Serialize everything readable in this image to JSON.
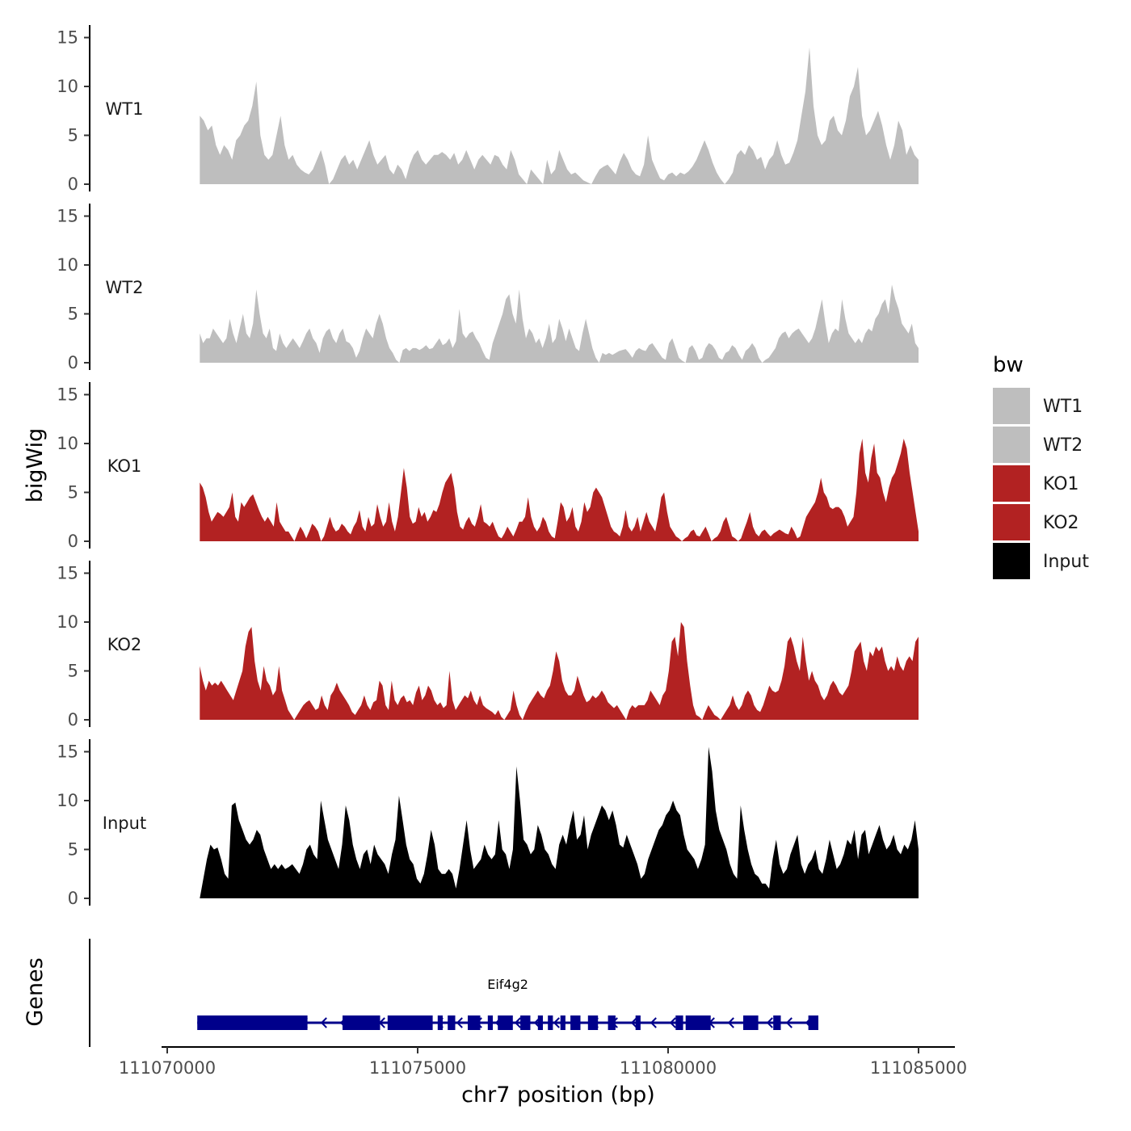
{
  "chart_data": {
    "type": "area",
    "title": "",
    "ylabel": "bigWig",
    "genes_label": "Genes",
    "xlabel": "chr7 position (bp)",
    "xlim": [
      111069800,
      111085300
    ],
    "x_ticks": [
      111070000,
      111075000,
      111080000,
      111085000
    ],
    "x_tick_labels": [
      "111070000",
      "111075000",
      "111080000",
      "111085000"
    ],
    "ylim": [
      0,
      15.5
    ],
    "y_ticks": [
      0,
      5,
      10,
      15
    ],
    "y_tick_labels": [
      "0",
      "5",
      "10",
      "15"
    ],
    "signal_x_range": [
      111070650,
      111085000
    ],
    "legend": {
      "title": "bw",
      "entries": [
        {
          "label": "WT1",
          "color": "#BEBEBE"
        },
        {
          "label": "WT2",
          "color": "#BEBEBE"
        },
        {
          "label": "KO1",
          "color": "#B22222"
        },
        {
          "label": "KO2",
          "color": "#B22222"
        },
        {
          "label": "Input",
          "color": "#000000"
        }
      ]
    },
    "series": [
      {
        "name": "WT1",
        "color": "#BEBEBE",
        "values": [
          7,
          6.5,
          5.5,
          6,
          4,
          3,
          4,
          3.5,
          2.5,
          4.5,
          5,
          6,
          6.5,
          8,
          10.5,
          5,
          3,
          2.5,
          3,
          5,
          7,
          4,
          2.5,
          3,
          2,
          1.5,
          1.2,
          1,
          1.5,
          2.5,
          3.5,
          2,
          0,
          0.5,
          1.5,
          2.5,
          3,
          2,
          2.5,
          1.5,
          2.5,
          3.5,
          4.5,
          3,
          2,
          2.5,
          3,
          1.5,
          1,
          2,
          1.5,
          0.5,
          2,
          3,
          3.5,
          2.5,
          2,
          2.5,
          3,
          3,
          3.3,
          3,
          2.5,
          3.2,
          2,
          2.5,
          3.5,
          2.5,
          1.5,
          2.5,
          3,
          2.5,
          2,
          3,
          2.8,
          2,
          1.5,
          3.5,
          2.5,
          1,
          0.5,
          0,
          1.5,
          1,
          0.5,
          0,
          2.5,
          1,
          1.5,
          3.5,
          2.5,
          1.5,
          1,
          1.2,
          0.8,
          0.4,
          0.2,
          0,
          0.8,
          1.5,
          1.8,
          2,
          1.5,
          1,
          2.3,
          3.2,
          2.5,
          1.5,
          1,
          0.8,
          2,
          5,
          2.5,
          1.5,
          0.6,
          0.4,
          1,
          1.2,
          0.8,
          1.2,
          1,
          1.3,
          1.8,
          2.5,
          3.5,
          4.5,
          3.5,
          2.2,
          1.2,
          0.5,
          0,
          0.5,
          1.2,
          3,
          3.5,
          3,
          4,
          3.5,
          2.5,
          2.8,
          1.5,
          2.5,
          3,
          4.5,
          3,
          2,
          2.2,
          3.2,
          4.5,
          7,
          9.5,
          14,
          8,
          5,
          4,
          4.5,
          6.5,
          7,
          5.5,
          5,
          6.5,
          9,
          10,
          12,
          7,
          5,
          5.5,
          6.5,
          7.5,
          6,
          4,
          2.5,
          4,
          6.5,
          5.5,
          3,
          4,
          3,
          2.5
        ]
      },
      {
        "name": "WT2",
        "color": "#BEBEBE",
        "values": [
          3,
          2,
          2.5,
          2.5,
          3.5,
          3,
          2.5,
          2,
          2.5,
          4.5,
          3,
          2,
          3.5,
          5,
          3,
          2.5,
          4,
          7.5,
          5,
          3,
          2.5,
          3.5,
          1.5,
          1.2,
          3,
          2,
          1.5,
          2,
          2.5,
          2,
          1.5,
          2.2,
          3,
          3.5,
          2.5,
          2,
          1,
          2.5,
          3.2,
          3.5,
          2.5,
          2,
          3,
          3.5,
          2.2,
          2,
          1.5,
          0.5,
          1.2,
          2.5,
          3.5,
          3,
          2.5,
          4,
          5,
          4,
          2.5,
          1.5,
          1,
          0.3,
          0,
          1.3,
          1.5,
          1.2,
          1.5,
          1.5,
          1.3,
          1.5,
          1.8,
          1.4,
          1.5,
          2,
          2.5,
          1.8,
          2,
          2.5,
          1.5,
          2.2,
          5.5,
          3,
          2.5,
          3,
          3.2,
          2.5,
          2,
          1.2,
          0.5,
          0.3,
          2,
          3,
          4,
          5,
          6.5,
          7,
          5,
          4,
          7.5,
          4.5,
          2.5,
          3.5,
          3,
          2,
          2.5,
          1.5,
          2.5,
          4,
          2,
          2.5,
          4.5,
          3.5,
          2.2,
          3.5,
          2.5,
          1.5,
          1.2,
          3,
          4.5,
          3,
          1.5,
          0.5,
          0,
          1,
          0.8,
          1,
          0.8,
          1,
          1.2,
          1.3,
          1.4,
          1,
          0.5,
          1.2,
          1.5,
          1.3,
          1.2,
          1.8,
          2,
          1.5,
          1,
          0.5,
          0.3,
          2,
          2.5,
          1.5,
          0.5,
          0.2,
          0,
          1.5,
          1.8,
          1.2,
          0.3,
          0.5,
          1.5,
          2,
          1.8,
          1.3,
          0.5,
          0.3,
          1,
          1.2,
          1.8,
          1.5,
          0.8,
          0.3,
          1.2,
          1.5,
          2,
          1.5,
          0.5,
          0,
          0.3,
          0.5,
          1,
          1.5,
          2.5,
          3,
          3.2,
          2.5,
          3,
          3.3,
          3.5,
          3,
          2.5,
          2,
          2.5,
          3.5,
          5,
          6.5,
          4,
          2,
          3,
          3.5,
          3.2,
          6.5,
          4.5,
          3,
          2.5,
          2,
          2.5,
          2,
          3,
          3.5,
          3.2,
          4.5,
          5,
          6,
          6.5,
          5,
          8,
          6.5,
          5.5,
          4,
          3.5,
          3,
          4,
          2,
          1.5
        ]
      },
      {
        "name": "KO1",
        "color": "#B22222",
        "values": [
          6,
          5.5,
          4.5,
          3,
          2,
          2.5,
          3,
          2.8,
          2.5,
          3,
          3.5,
          5,
          2.5,
          2,
          4,
          3.5,
          4,
          4.5,
          4.8,
          4,
          3.2,
          2.5,
          2,
          2.5,
          2,
          1.5,
          4,
          2,
          1.5,
          1,
          1,
          0.5,
          0,
          0.8,
          1.5,
          1,
          0.3,
          1,
          1.8,
          1.5,
          1,
          0,
          0.5,
          1.5,
          2.5,
          1.5,
          1,
          1.2,
          1.8,
          1.5,
          1,
          0.7,
          1.5,
          2,
          3.2,
          1.5,
          1,
          2.5,
          1.5,
          1.8,
          3.8,
          2.5,
          1.5,
          2,
          4,
          2,
          1,
          2.5,
          5,
          7.5,
          5.5,
          2.5,
          1.8,
          2,
          3.5,
          2.5,
          3,
          2,
          2.5,
          3.2,
          3,
          3.8,
          5,
          6,
          6.5,
          7,
          5.5,
          3,
          1.5,
          1.2,
          2,
          2.5,
          1.8,
          1.5,
          2.5,
          3.8,
          2,
          1.8,
          1.5,
          2,
          1.2,
          0.5,
          0.3,
          0.8,
          1.5,
          1,
          0.5,
          1.2,
          2,
          2,
          2.5,
          4.5,
          2.5,
          1.5,
          1,
          1.5,
          2.5,
          2,
          1,
          0.5,
          0.3,
          2,
          4,
          3.5,
          2,
          2.5,
          3.5,
          1.5,
          1,
          2,
          4,
          3,
          3.5,
          5,
          5.5,
          5,
          4.5,
          3.5,
          2.5,
          1.5,
          1,
          0.8,
          0.5,
          1.5,
          3.2,
          1.5,
          1,
          1.5,
          2.5,
          1,
          2,
          3,
          2,
          1.5,
          1,
          2.5,
          4.5,
          5,
          3,
          1.5,
          1,
          0.5,
          0.3,
          0,
          0.3,
          0.5,
          1,
          1.2,
          0.6,
          0.5,
          1,
          1.5,
          0.8,
          0,
          0.3,
          0.5,
          1,
          2,
          2.5,
          1.5,
          0.5,
          0.3,
          0,
          0.3,
          1.2,
          2,
          3,
          1.5,
          0.8,
          0.5,
          1,
          1.2,
          0.8,
          0.5,
          0.8,
          1,
          1.2,
          1,
          0.8,
          0.7,
          1.5,
          1,
          0.3,
          0.5,
          1.5,
          2.5,
          3,
          3.5,
          4,
          5,
          6.5,
          5,
          4.5,
          3.5,
          3.3,
          3.5,
          3.5,
          3.2,
          2.5,
          1.5,
          2,
          2.5,
          5,
          9,
          10.5,
          7,
          6,
          8.5,
          10,
          7,
          6.5,
          5,
          4,
          5.5,
          6.5,
          7,
          8,
          9,
          10.5,
          9.5,
          7,
          5,
          3,
          1
        ]
      },
      {
        "name": "KO2",
        "color": "#B22222",
        "values": [
          5.5,
          4,
          3,
          4,
          3.5,
          3.8,
          3.5,
          4,
          3.5,
          3,
          2.5,
          2,
          3,
          4,
          5,
          7.5,
          9,
          9.5,
          6,
          4,
          3,
          5.5,
          4,
          3.5,
          2.5,
          3,
          5.5,
          3,
          2,
          1,
          0.5,
          0,
          0.5,
          1,
          1.5,
          1.8,
          2,
          1.5,
          1,
          1.2,
          2.5,
          1.5,
          1,
          2.5,
          3,
          3.8,
          3,
          2.5,
          2,
          1.5,
          0.8,
          0.5,
          1,
          1.5,
          2.5,
          1.5,
          1,
          1.8,
          2,
          4,
          3.5,
          1.5,
          1,
          4,
          2,
          1.5,
          2.2,
          2.5,
          1.8,
          2,
          1.5,
          2.8,
          3.5,
          2,
          2.5,
          3.5,
          3,
          2,
          1.5,
          1.8,
          1.2,
          1.5,
          5,
          2,
          1,
          1.5,
          2,
          2.5,
          2.2,
          3,
          2,
          1.5,
          2.5,
          1.5,
          1.2,
          1,
          0.8,
          0.5,
          1,
          0.3,
          0,
          0.5,
          1,
          3,
          1.5,
          0.5,
          0,
          0.8,
          1.5,
          2,
          2.5,
          3,
          2.5,
          2.2,
          3,
          3.5,
          5,
          7,
          6,
          4,
          3,
          2.5,
          2.5,
          3,
          4.5,
          3.5,
          2.5,
          1.8,
          2,
          2.5,
          2.2,
          2.5,
          3,
          2.5,
          1.8,
          1.5,
          1.2,
          1.5,
          1,
          0.5,
          0,
          1,
          1.5,
          1.2,
          1.5,
          1.5,
          1.5,
          2,
          3,
          2.5,
          2,
          1.5,
          2.5,
          3,
          5,
          8,
          8.5,
          6.5,
          10,
          9.5,
          6,
          3.5,
          1.5,
          0.5,
          0.3,
          0,
          0.8,
          1.5,
          1,
          0.5,
          0.3,
          0,
          0.5,
          1,
          1.5,
          2.5,
          1.5,
          1,
          1.5,
          2.5,
          3,
          2.5,
          1.5,
          1,
          0.8,
          1.5,
          2.5,
          3.5,
          3,
          2.8,
          3,
          4,
          5.5,
          8,
          8.5,
          7.5,
          6,
          5,
          8.5,
          6,
          4,
          5,
          4,
          3.5,
          2.5,
          2,
          2.5,
          3.5,
          4,
          3.5,
          2.8,
          2.5,
          3,
          3.5,
          5,
          7,
          7.5,
          8,
          6,
          5,
          7,
          6.5,
          7.5,
          7,
          7.5,
          6,
          5,
          5.5,
          5,
          6.5,
          5.5,
          5,
          6,
          6.5,
          6,
          8,
          8.5
        ]
      },
      {
        "name": "Input",
        "color": "#000000",
        "values": [
          0,
          2,
          4,
          5.5,
          5,
          5.2,
          4,
          2.5,
          2,
          9.5,
          9.8,
          8,
          7,
          6,
          5.5,
          6,
          7,
          6.5,
          5,
          4,
          3,
          3.5,
          3,
          3.5,
          3,
          3.2,
          3.5,
          3,
          2.5,
          3.5,
          5,
          5.5,
          4.5,
          4,
          10,
          8,
          6,
          5,
          4,
          3,
          5.5,
          9.5,
          8,
          5.5,
          4,
          3,
          4.5,
          5,
          3.5,
          5.5,
          4.5,
          4,
          3.5,
          2.5,
          4.5,
          6,
          10.5,
          8,
          5.5,
          4,
          3.5,
          2,
          1.5,
          2.5,
          4.5,
          7,
          5.5,
          3,
          2.5,
          2.5,
          3,
          2.5,
          1,
          3,
          5.5,
          8,
          5,
          3,
          3.5,
          4,
          5.5,
          4.5,
          4,
          4.5,
          8,
          5,
          4.5,
          3,
          5,
          13.5,
          10,
          6,
          5.5,
          4.5,
          5,
          7.5,
          6.5,
          5,
          4.5,
          3.5,
          3,
          5.5,
          6.5,
          5.5,
          7.5,
          9,
          6,
          6.5,
          8.5,
          5,
          6.5,
          7.5,
          8.5,
          9.5,
          9,
          8,
          9,
          7.5,
          5.5,
          5.2,
          6.5,
          5.5,
          4.5,
          3.5,
          2,
          2.5,
          4,
          5,
          6,
          7,
          7.5,
          8.5,
          9,
          10,
          9,
          8.5,
          6.5,
          5,
          4.5,
          4,
          3,
          4,
          5.5,
          15.5,
          13,
          9,
          7,
          6,
          5,
          3.5,
          2.5,
          2,
          9.5,
          7,
          5,
          3.5,
          2.5,
          2.2,
          1.5,
          1.5,
          1,
          4,
          6,
          3.5,
          2.5,
          3,
          4.5,
          5.5,
          6.5,
          3.5,
          2.5,
          3.5,
          4,
          5,
          3,
          2.5,
          4,
          6,
          4.5,
          3,
          3.5,
          4.5,
          6,
          5.5,
          7,
          4,
          6.5,
          7,
          4.5,
          5.5,
          6.5,
          7.5,
          6,
          5,
          5.5,
          6.5,
          5,
          4.5,
          5.5,
          5,
          6,
          8,
          5
        ]
      }
    ],
    "gene": {
      "name": "Eif4g2",
      "color": "#00008B",
      "strand": "-",
      "start": 111070600,
      "end": 111083000,
      "exons": [
        [
          111070600,
          111072800
        ],
        [
          111073500,
          111074250
        ],
        [
          111074400,
          111075300
        ],
        [
          111075400,
          111075500
        ],
        [
          111075600,
          111075750
        ],
        [
          111076000,
          111076250
        ],
        [
          111076400,
          111076500
        ],
        [
          111076600,
          111076900
        ],
        [
          111077050,
          111077250
        ],
        [
          111077400,
          111077500
        ],
        [
          111077600,
          111077700
        ],
        [
          111077850,
          111077950
        ],
        [
          111078050,
          111078250
        ],
        [
          111078400,
          111078600
        ],
        [
          111078800,
          111078950
        ],
        [
          111079350,
          111079450
        ],
        [
          111080150,
          111080300
        ],
        [
          111080350,
          111080850
        ],
        [
          111081500,
          111081800
        ],
        [
          111082100,
          111082250
        ],
        [
          111082800,
          111083000
        ]
      ]
    }
  }
}
